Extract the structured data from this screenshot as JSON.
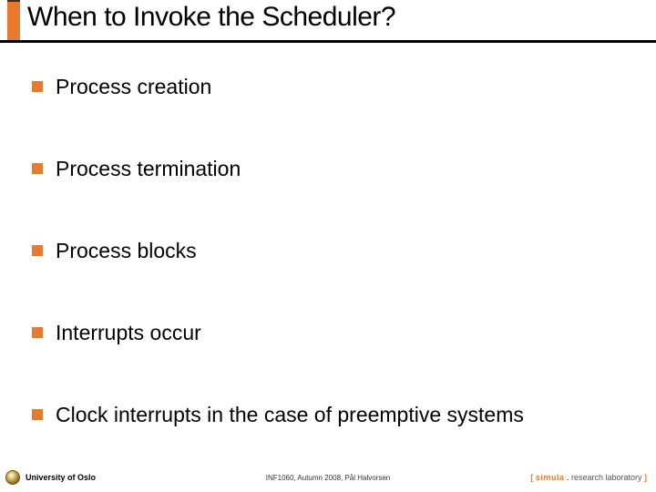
{
  "title": "When to Invoke the Scheduler?",
  "bullets": {
    "b0": "Process creation",
    "b1": "Process termination",
    "b2": "Process blocks",
    "b3": "Interrupts occur",
    "b4": "Clock interrupts in the case of preemptive systems"
  },
  "footer": {
    "left": "University of Oslo",
    "center": "INF1060, Autumn 2008, Pål Halvorsen",
    "right_bracket_open": "[ ",
    "right_simula": "simula",
    "right_dot": " . ",
    "right_rest": "research laboratory",
    "right_bracket_close": " ]"
  },
  "colors": {
    "accent": "#e87a2f",
    "text": "#000000",
    "background": "#ffffff"
  }
}
